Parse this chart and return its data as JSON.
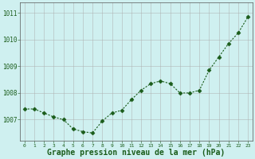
{
  "x": [
    0,
    1,
    2,
    3,
    4,
    5,
    6,
    7,
    8,
    9,
    10,
    11,
    12,
    13,
    14,
    15,
    16,
    17,
    18,
    19,
    20,
    21,
    22,
    23
  ],
  "y": [
    1007.4,
    1007.4,
    1007.25,
    1007.1,
    1007.0,
    1006.65,
    1006.55,
    1006.5,
    1006.95,
    1007.25,
    1007.35,
    1007.75,
    1008.1,
    1008.35,
    1008.45,
    1008.35,
    1008.0,
    1008.0,
    1008.1,
    1008.85,
    1009.35,
    1009.85,
    1010.25,
    1010.85
  ],
  "line_color": "#1a5c1a",
  "marker": "D",
  "markersize": 2.5,
  "linewidth": 0.8,
  "bg_color": "#cff0f0",
  "grid_color": "#aaaaaa",
  "xlabel": "Graphe pression niveau de la mer (hPa)",
  "xlabel_fontsize": 7,
  "ytick_labels": [
    1007,
    1008,
    1009,
    1010,
    1011
  ],
  "ylim": [
    1006.2,
    1011.4
  ],
  "xlim": [
    -0.5,
    23.5
  ],
  "xtick_labels": [
    "0",
    "1",
    "2",
    "3",
    "4",
    "5",
    "6",
    "7",
    "8",
    "9",
    "10",
    "11",
    "12",
    "13",
    "14",
    "15",
    "16",
    "17",
    "18",
    "19",
    "20",
    "21",
    "22",
    "23"
  ]
}
